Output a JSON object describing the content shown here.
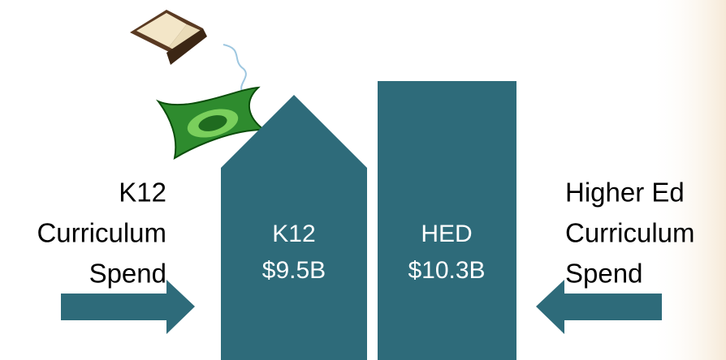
{
  "left_label": {
    "lines": [
      "K12",
      "Curriculum",
      "Spend"
    ]
  },
  "right_label": {
    "lines": [
      "Higher Ed",
      "Curriculum",
      "Spend"
    ]
  },
  "blocks": [
    {
      "lines": [
        "K12",
        "$9.5B"
      ]
    },
    {
      "lines": [
        "HED",
        "$10.3B"
      ]
    }
  ]
}
